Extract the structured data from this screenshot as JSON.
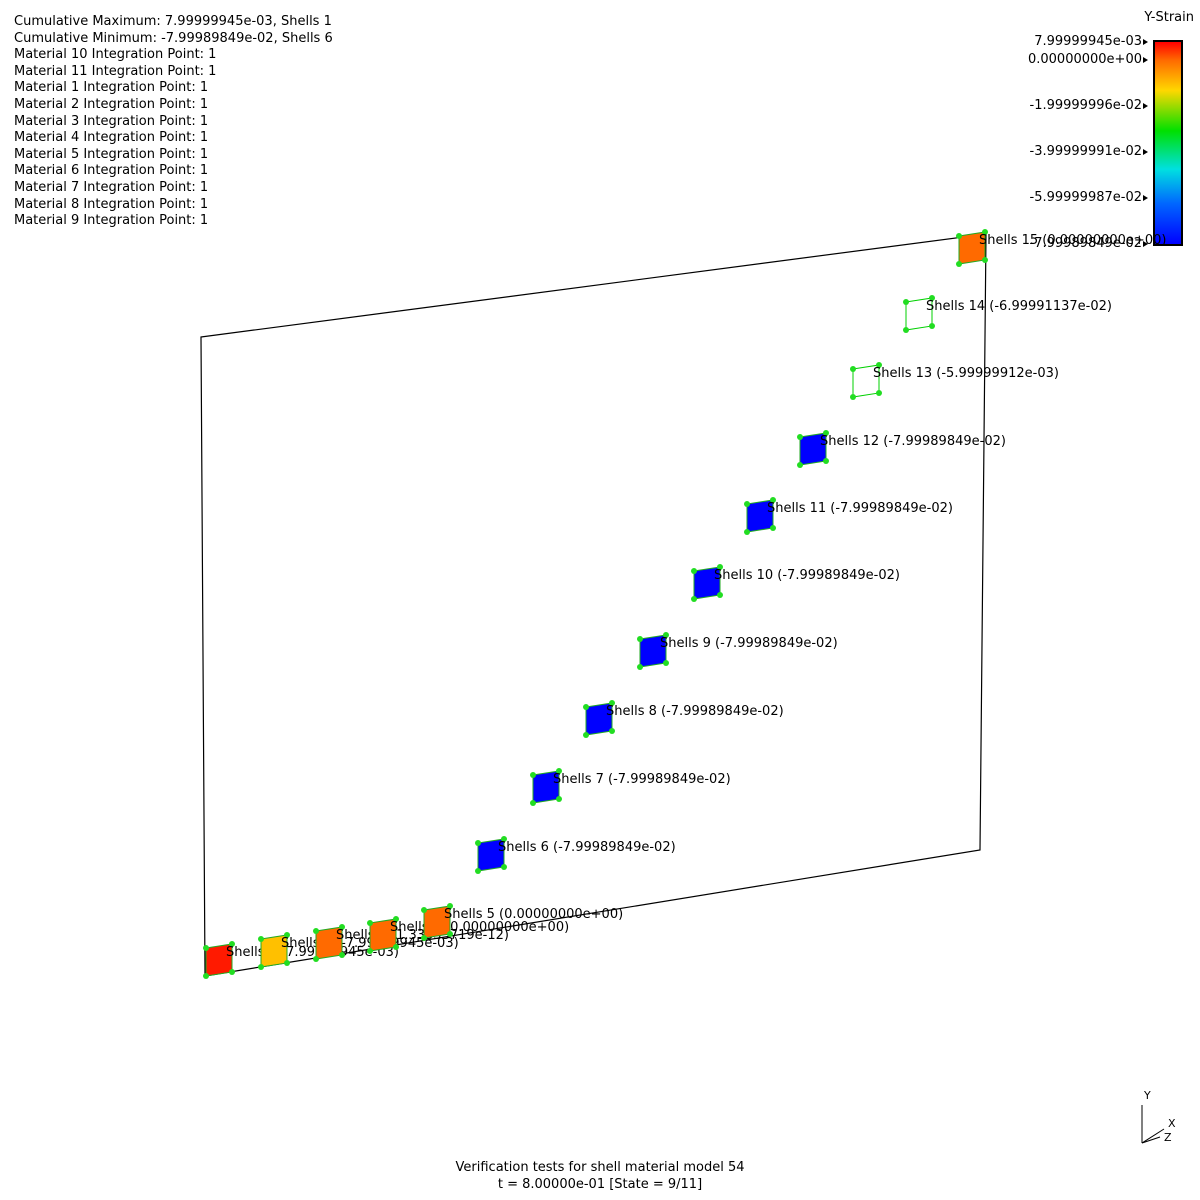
{
  "info_lines": [
    "Cumulative Maximum: 7.99999945e-03, Shells 1",
    "Cumulative Minimum: -7.99989849e-02, Shells 6",
    "Material 10 Integration Point: 1",
    "Material 11 Integration Point: 1",
    "Material 1 Integration Point: 1",
    "Material 2 Integration Point: 1",
    "Material 3 Integration Point: 1",
    "Material 4 Integration Point: 1",
    "Material 5 Integration Point: 1",
    "Material 6 Integration Point: 1",
    "Material 7 Integration Point: 1",
    "Material 8 Integration Point: 1",
    "Material 9 Integration Point: 1"
  ],
  "legend": {
    "title": "Y-Strain",
    "max": 0.00799999945,
    "min": -0.0799989849,
    "labels": [
      "7.99999945e-03",
      "0.00000000e+00",
      "-1.99999996e-02",
      "-3.99999991e-02",
      "-5.99999987e-02",
      "-7.99989849e-02"
    ],
    "label_values": [
      0.00799999945,
      0.0,
      -0.0199999996,
      -0.0399999991,
      -0.0599999987,
      -0.0799989849
    ]
  },
  "shells": [
    {
      "id": 1,
      "label": "Shells 1 (7.99999945e-03)",
      "value": 0.00799999945,
      "color": "#ff1a00",
      "filled": true
    },
    {
      "id": 2,
      "label": "Shells 2 (-7.99999945e-03)",
      "value": -0.00799999945,
      "color": "#ffc000",
      "filled": true
    },
    {
      "id": 3,
      "label": "Shells 3 (1.33333719e-12)",
      "value": 1.33333719e-12,
      "color": "#ff6a00",
      "filled": true
    },
    {
      "id": 4,
      "label": "Shells 4 (0.00000000e+00)",
      "value": 0.0,
      "color": "#ff6a00",
      "filled": true
    },
    {
      "id": 5,
      "label": "Shells 5 (0.00000000e+00)",
      "value": 0.0,
      "color": "#ff6a00",
      "filled": true
    },
    {
      "id": 6,
      "label": "Shells 6 (-7.99989849e-02)",
      "value": -0.0799989849,
      "color": "#0000ff",
      "filled": true
    },
    {
      "id": 7,
      "label": "Shells 7 (-7.99989849e-02)",
      "value": -0.0799989849,
      "color": "#0000ff",
      "filled": true
    },
    {
      "id": 8,
      "label": "Shells 8 (-7.99989849e-02)",
      "value": -0.0799989849,
      "color": "#0000ff",
      "filled": true
    },
    {
      "id": 9,
      "label": "Shells 9 (-7.99989849e-02)",
      "value": -0.0799989849,
      "color": "#0000ff",
      "filled": true
    },
    {
      "id": 10,
      "label": "Shells 10 (-7.99989849e-02)",
      "value": -0.0799989849,
      "color": "#0000ff",
      "filled": true
    },
    {
      "id": 11,
      "label": "Shells 11 (-7.99989849e-02)",
      "value": -0.0799989849,
      "color": "#0000ff",
      "filled": true
    },
    {
      "id": 12,
      "label": "Shells 12 (-7.99989849e-02)",
      "value": -0.0799989849,
      "color": "#0000ff",
      "filled": true
    },
    {
      "id": 13,
      "label": "Shells 13 (-5.99999912e-03)",
      "value": -0.00599999912,
      "color": "#00d000",
      "filled": false
    },
    {
      "id": 14,
      "label": "Shells 14 (-6.99991137e-02)",
      "value": -0.0699991137,
      "color": "#00d000",
      "filled": false
    },
    {
      "id": 15,
      "label": "Shells 15 (0.00000000e+00)",
      "value": 0.0,
      "color": "#ff6a00",
      "filled": true
    }
  ],
  "node_color": "#22dd22",
  "footer": {
    "title": "Verification tests for shell material model 54",
    "state": "t = 8.00000e-01 [State = 9/11]"
  },
  "axes": {
    "y": "Y",
    "x": "X",
    "z": "Z"
  }
}
